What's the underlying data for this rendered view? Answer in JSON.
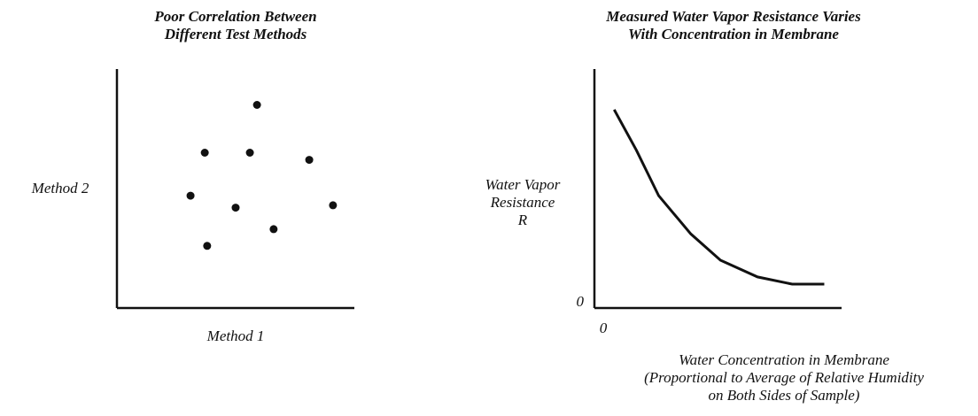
{
  "chart_data": [
    {
      "type": "scatter",
      "title": [
        "Poor Correlation Between",
        "Different Test Methods"
      ],
      "x_label": [
        "Method 1"
      ],
      "y_label": [
        "Method 2"
      ],
      "x": [
        5.9,
        3.7,
        5.6,
        8.1,
        3.1,
        5.0,
        9.1,
        6.6,
        3.8
      ],
      "values": [
        8.5,
        6.5,
        6.5,
        6.2,
        4.7,
        4.2,
        4.3,
        3.3,
        2.6
      ],
      "color": "#111111",
      "xlim": [
        0,
        10
      ],
      "ylim": [
        0,
        10
      ]
    },
    {
      "type": "line",
      "title": [
        "Measured Water Vapor Resistance Varies",
        "With Concentration in Membrane"
      ],
      "x_label": [
        "Water Concentration in Membrane",
        "(Proportional to Average of Relative Humidity",
        "on Both Sides of Sample)"
      ],
      "y_label": [
        "Water Vapor",
        "Resistance",
        "R"
      ],
      "x": [
        0.8,
        1.7,
        2.6,
        3.9,
        5.1,
        6.6,
        8.0,
        9.3
      ],
      "values": [
        8.3,
        6.6,
        4.7,
        3.1,
        2.0,
        1.3,
        1.0,
        1.0
      ],
      "color": "#111111",
      "xlim": [
        0,
        10
      ],
      "ylim": [
        0,
        10
      ],
      "xticks": [
        0
      ],
      "yticks": [
        0
      ]
    }
  ]
}
